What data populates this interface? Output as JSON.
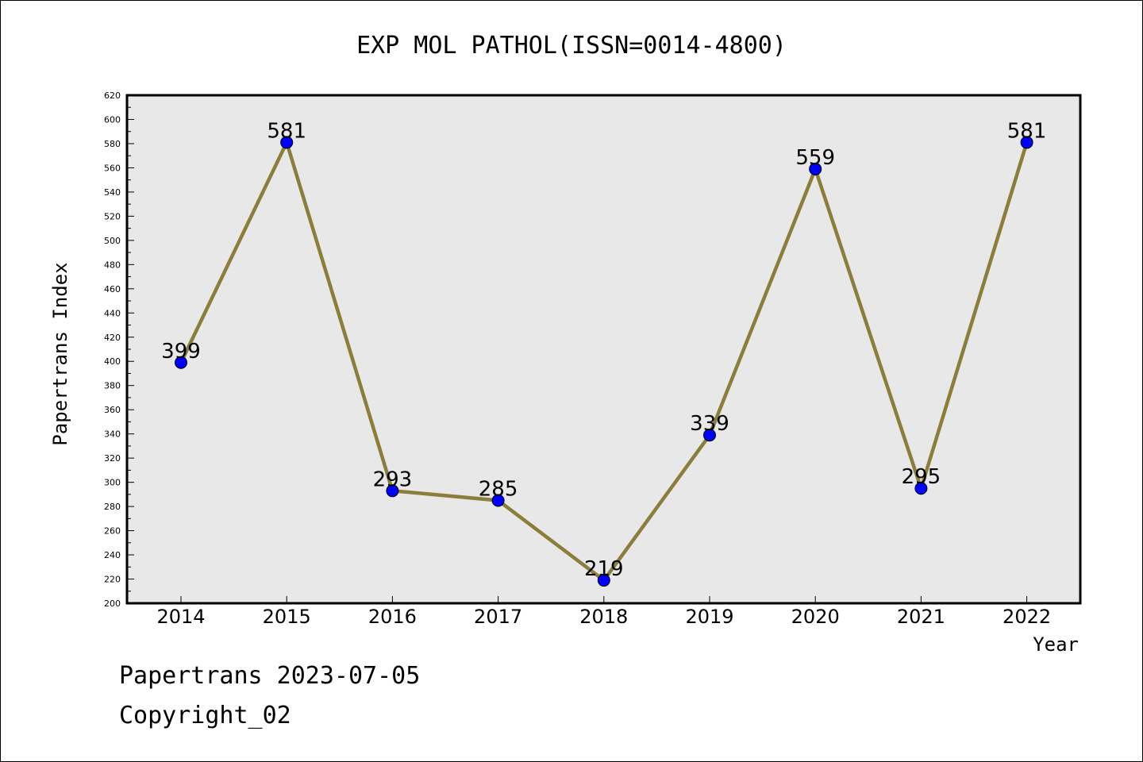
{
  "chart_data": {
    "type": "line",
    "title": "EXP MOL PATHOL(ISSN=0014-4800)",
    "xlabel": "Year",
    "ylabel": "Papertrans Index",
    "categories": [
      "2014",
      "2015",
      "2016",
      "2017",
      "2018",
      "2019",
      "2020",
      "2021",
      "2022"
    ],
    "values": [
      399,
      581,
      293,
      285,
      219,
      339,
      559,
      295,
      581
    ],
    "data_labels": [
      "399",
      "581",
      "293",
      "285",
      "219",
      "339",
      "559",
      "295",
      "581"
    ],
    "ylim": [
      200,
      620
    ],
    "yticks": [
      "200",
      "220",
      "240",
      "260",
      "280",
      "300",
      "320",
      "340",
      "360",
      "380",
      "400",
      "420",
      "440",
      "460",
      "480",
      "500",
      "520",
      "540",
      "560",
      "580",
      "600",
      "620"
    ],
    "grid": false,
    "legend": "none",
    "colors": {
      "plot_background": "#e8e8e8",
      "line": "#8b7d3a",
      "marker": "#0000ff"
    }
  },
  "footer": {
    "line1": "Papertrans 2023-07-05",
    "line2": "Copyright_02"
  }
}
